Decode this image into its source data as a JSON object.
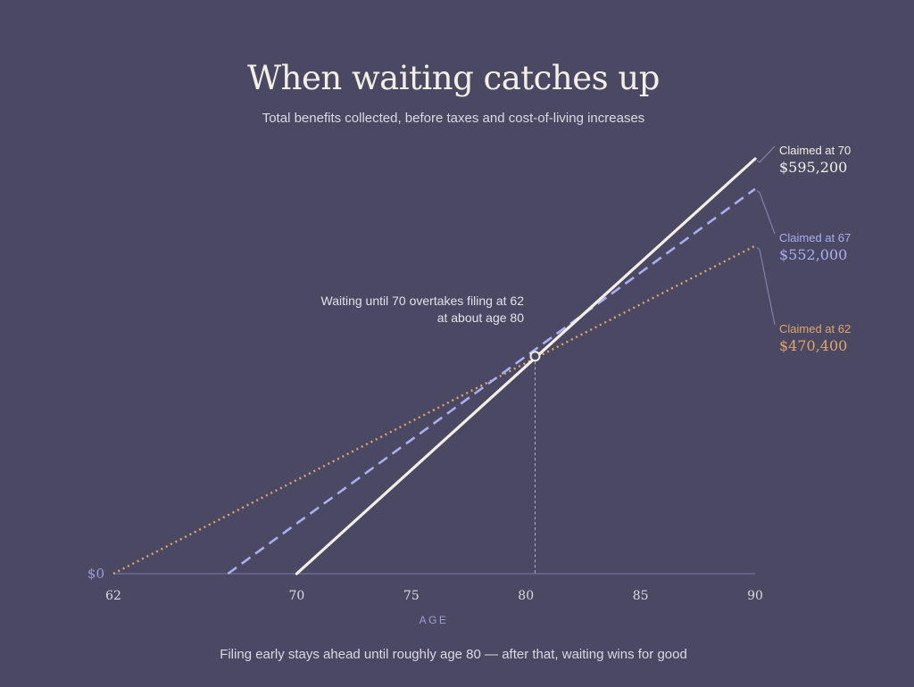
{
  "chart_data": {
    "type": "line",
    "title": "When waiting catches up",
    "subtitle": "Total benefits collected, before taxes and cost-of-living increases",
    "xlabel": "AGE",
    "xlim": [
      62,
      90
    ],
    "ylim": [
      0,
      595200
    ],
    "x_ticks": [
      62,
      70,
      75,
      80,
      85,
      90
    ],
    "y_ticks": [
      {
        "value": 0,
        "label": "$0"
      }
    ],
    "grid": false,
    "legend": "direct labels at right",
    "series": [
      {
        "name": "Claimed at 62",
        "start_age": 62,
        "points": [
          [
            62,
            0
          ],
          [
            90,
            470400
          ]
        ],
        "end_label": "$470,400",
        "color": "#e0a56a",
        "style": "dotted"
      },
      {
        "name": "Claimed at 67",
        "start_age": 67,
        "points": [
          [
            67,
            0
          ],
          [
            90,
            552000
          ]
        ],
        "end_label": "$552,000",
        "color": "#a9aef0",
        "style": "dashed"
      },
      {
        "name": "Claimed at 70",
        "start_age": 70,
        "points": [
          [
            70,
            0
          ],
          [
            90,
            595200
          ]
        ],
        "end_label": "$595,200",
        "color": "#f3efe6",
        "style": "solid"
      }
    ],
    "annotation": {
      "lines": [
        "Waiting until 70 overtakes filing at 62",
        "at about age 80"
      ],
      "x": 80.4,
      "y": 312000
    },
    "caption": "Filing early stays ahead until roughly age 80 — after that, waiting wins for good"
  }
}
